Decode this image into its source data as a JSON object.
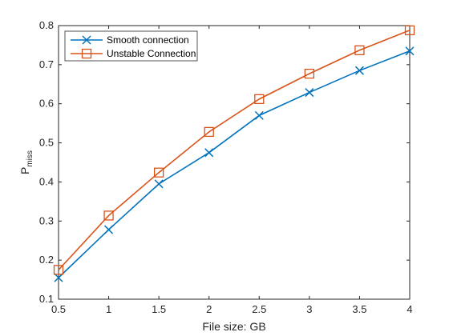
{
  "chart_data": {
    "type": "line",
    "xlabel": "File size: GB",
    "ylabel_main": "P",
    "ylabel_sub": "miss",
    "xlim": [
      0.5,
      4
    ],
    "ylim": [
      0.1,
      0.8
    ],
    "xticks": [
      0.5,
      1,
      1.5,
      2,
      2.5,
      3,
      3.5,
      4
    ],
    "xtick_labels": [
      "0.5",
      "1",
      "1.5",
      "2",
      "2.5",
      "3",
      "3.5",
      "4"
    ],
    "yticks": [
      0.1,
      0.2,
      0.3,
      0.4,
      0.5,
      0.6,
      0.7,
      0.8
    ],
    "ytick_labels": [
      "0.1",
      "0.2",
      "0.3",
      "0.4",
      "0.5",
      "0.6",
      "0.7",
      "0.8"
    ],
    "grid": false,
    "legend_position": "top-left",
    "x": [
      0.5,
      1,
      1.5,
      2,
      2.5,
      3,
      3.5,
      4
    ],
    "series": [
      {
        "name": "Smooth connection",
        "values": [
          0.155,
          0.278,
          0.395,
          0.475,
          0.57,
          0.629,
          0.685,
          0.735
        ],
        "color": "#0072BD",
        "marker": "x"
      },
      {
        "name": "Unstable Connection",
        "values": [
          0.175,
          0.314,
          0.424,
          0.528,
          0.612,
          0.677,
          0.737,
          0.788
        ],
        "color": "#D95319",
        "marker": "square"
      }
    ]
  }
}
